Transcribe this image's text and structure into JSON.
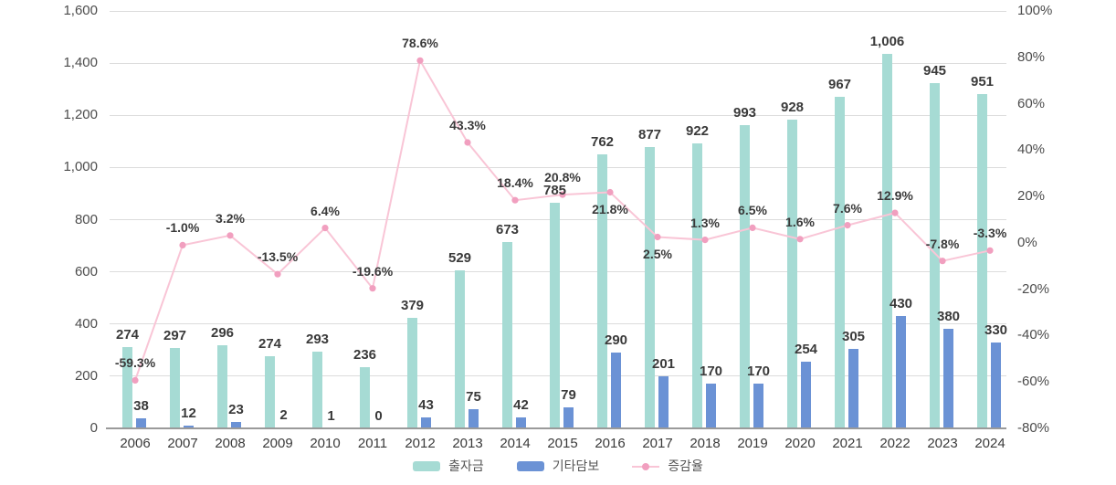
{
  "chart_data": {
    "type": "combo-bar-line",
    "title": "",
    "categories": [
      "2006",
      "2007",
      "2008",
      "2009",
      "2010",
      "2011",
      "2012",
      "2013",
      "2014",
      "2015",
      "2016",
      "2017",
      "2018",
      "2019",
      "2020",
      "2021",
      "2022",
      "2023",
      "2024"
    ],
    "series": [
      {
        "name": "출자금",
        "type": "bar",
        "axis": "left",
        "color": "#a6dbd4",
        "values": [
          274,
          297,
          296,
          274,
          293,
          236,
          379,
          529,
          673,
          785,
          762,
          877,
          922,
          993,
          928,
          967,
          1006,
          945,
          951
        ]
      },
      {
        "name": "기타담보",
        "type": "bar",
        "axis": "left",
        "color": "#6b92d5",
        "values": [
          38,
          12,
          23,
          2,
          1,
          0,
          43,
          75,
          42,
          79,
          290,
          201,
          170,
          170,
          254,
          305,
          430,
          380,
          330
        ]
      },
      {
        "name": "증감율",
        "type": "line",
        "axis": "right",
        "color": "#f9c5d6",
        "marker_color": "#f19fbf",
        "values": [
          -59.3,
          -1.0,
          3.2,
          -13.5,
          6.4,
          -19.6,
          78.6,
          43.3,
          18.4,
          20.8,
          21.8,
          2.5,
          1.3,
          6.5,
          1.6,
          7.6,
          12.9,
          -7.8,
          -3.3
        ]
      }
    ],
    "left_axis": {
      "min": 0,
      "max": 1600,
      "tick_step": 200,
      "tick_labels": [
        "0",
        "200",
        "400",
        "600",
        "800",
        "1,000",
        "1,200",
        "1,400",
        "1,600"
      ]
    },
    "right_axis": {
      "min": -80,
      "max": 100,
      "tick_step": 20,
      "tick_labels": [
        "-80%",
        "-60%",
        "-40%",
        "-20%",
        "0%",
        "20%",
        "40%",
        "60%",
        "80%",
        "100%"
      ]
    },
    "grid": "horizontal-only",
    "legend_position": "bottom-center",
    "render_hints": {
      "bar_top_equals_sum_of_bar_series": true,
      "pct_label_below_for_categories": [
        "2016",
        "2017"
      ]
    }
  }
}
